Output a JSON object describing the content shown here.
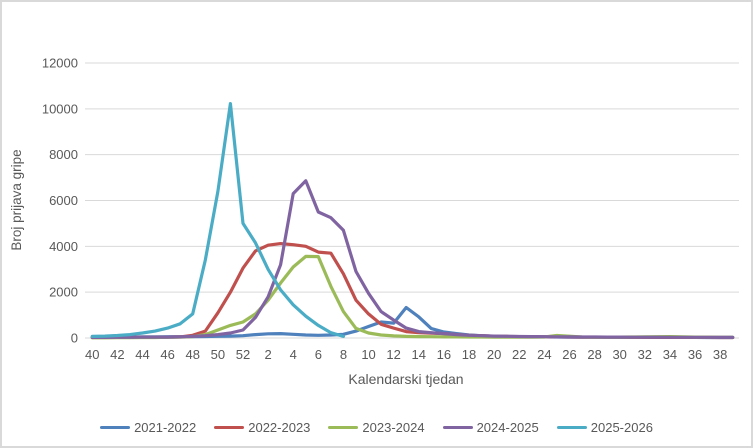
{
  "chart_data": {
    "type": "line",
    "title": "",
    "xlabel": "Kalendarski tjedan",
    "ylabel": "Broj prijava gripe",
    "ylim": [
      0,
      12000
    ],
    "y_ticks": [
      0,
      2000,
      4000,
      6000,
      8000,
      10000,
      12000
    ],
    "grid": "horizontal-only",
    "legend_position": "bottom",
    "x_tick_every": 2,
    "categories": [
      40,
      41,
      42,
      43,
      44,
      45,
      46,
      47,
      48,
      49,
      50,
      51,
      52,
      1,
      2,
      3,
      4,
      5,
      6,
      7,
      8,
      9,
      10,
      11,
      12,
      13,
      14,
      15,
      16,
      17,
      18,
      19,
      20,
      21,
      22,
      23,
      24,
      25,
      26,
      27,
      28,
      29,
      30,
      31,
      32,
      33,
      34,
      35,
      36,
      37,
      38,
      39
    ],
    "series": [
      {
        "name": "2021-2022",
        "color": "#4F81BD",
        "values": [
          40,
          40,
          45,
          45,
          50,
          50,
          55,
          55,
          60,
          65,
          75,
          85,
          100,
          150,
          185,
          190,
          160,
          130,
          120,
          130,
          160,
          300,
          500,
          700,
          650,
          1330,
          920,
          410,
          260,
          190,
          130,
          100,
          80,
          70,
          60,
          55,
          50,
          45,
          40,
          40,
          35,
          35,
          30,
          30,
          30,
          25,
          25,
          25,
          25,
          20,
          20,
          20
        ]
      },
      {
        "name": "2022-2023",
        "color": "#C0504D",
        "values": [
          20,
          20,
          25,
          25,
          30,
          30,
          40,
          50,
          120,
          300,
          1100,
          2000,
          3050,
          3800,
          4050,
          4120,
          4070,
          4000,
          3750,
          3700,
          2800,
          1650,
          1050,
          600,
          430,
          280,
          230,
          210,
          190,
          150,
          120,
          100,
          80,
          70,
          60,
          55,
          50,
          50,
          45,
          40,
          40,
          35,
          35,
          30,
          30,
          30,
          25,
          25,
          25,
          25,
          20,
          20
        ]
      },
      {
        "name": "2023-2024",
        "color": "#9BBB59",
        "values": [
          10,
          10,
          15,
          15,
          20,
          20,
          30,
          40,
          60,
          150,
          350,
          550,
          700,
          1050,
          1650,
          2400,
          3100,
          3560,
          3550,
          2250,
          1150,
          420,
          220,
          130,
          90,
          70,
          60,
          55,
          50,
          50,
          45,
          45,
          40,
          40,
          40,
          40,
          45,
          110,
          80,
          45,
          40,
          40,
          40,
          45,
          50,
          55,
          60,
          50,
          40,
          35,
          30,
          30
        ]
      },
      {
        "name": "2024-2025",
        "color": "#8064A2",
        "values": [
          25,
          25,
          30,
          30,
          35,
          35,
          40,
          50,
          70,
          100,
          150,
          220,
          350,
          900,
          1800,
          3200,
          6300,
          6860,
          5500,
          5250,
          4700,
          2900,
          1950,
          1150,
          780,
          430,
          280,
          230,
          190,
          150,
          120,
          100,
          85,
          75,
          65,
          60,
          55,
          50,
          50,
          45,
          45,
          40,
          40,
          35,
          35,
          35,
          30,
          30,
          30,
          30,
          25,
          25
        ]
      },
      {
        "name": "2025-2026",
        "color": "#4BACC6",
        "values": [
          70,
          85,
          110,
          150,
          220,
          300,
          430,
          620,
          1050,
          3400,
          6400,
          10230,
          5000,
          4150,
          3000,
          2100,
          1450,
          950,
          550,
          230,
          70,
          null,
          null,
          null,
          null,
          null,
          null,
          null,
          null,
          null,
          null,
          null,
          null,
          null,
          null,
          null,
          null,
          null,
          null,
          null,
          null,
          null,
          null,
          null,
          null,
          null,
          null,
          null,
          null,
          null,
          null,
          null
        ]
      }
    ]
  }
}
